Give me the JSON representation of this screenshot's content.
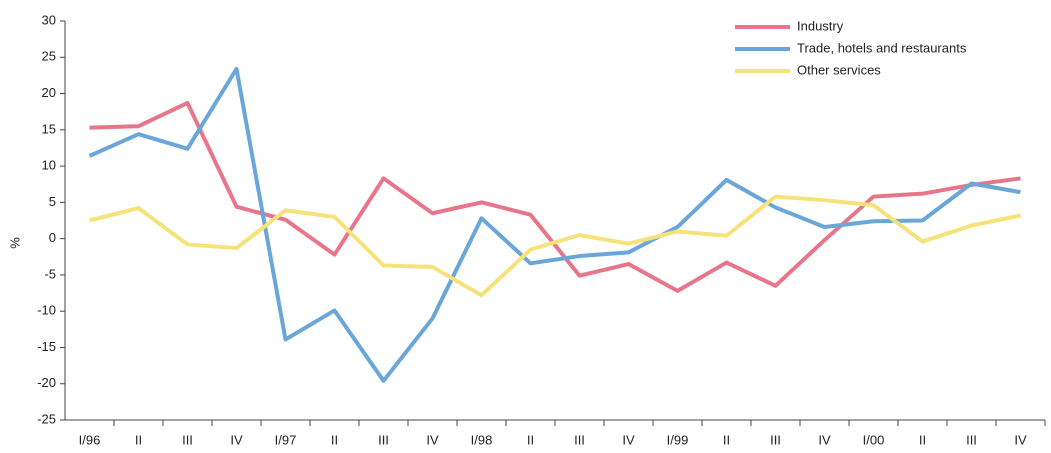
{
  "chart_data": {
    "type": "line",
    "y_label": "%",
    "categories": [
      "I/96",
      "II",
      "III",
      "IV",
      "I/97",
      "II",
      "III",
      "IV",
      "I/98",
      "II",
      "III",
      "IV",
      "I/99",
      "II",
      "III",
      "IV",
      "I/00",
      "II",
      "III",
      "IV"
    ],
    "series": [
      {
        "name": "Industry",
        "color": "#e8768a",
        "values": [
          15.3,
          15.5,
          18.7,
          4.4,
          2.6,
          -2.2,
          8.3,
          3.5,
          5.0,
          3.3,
          -5.1,
          -3.5,
          -7.2,
          -3.3,
          -6.5,
          -0.2,
          5.8,
          6.2,
          7.4,
          8.3
        ]
      },
      {
        "name": "Trade, hotels and restaurants",
        "color": "#6aa6d8",
        "values": [
          11.4,
          14.4,
          12.4,
          23.4,
          -13.9,
          -9.9,
          -19.6,
          -11.0,
          2.8,
          -3.4,
          -2.4,
          -1.9,
          1.6,
          8.1,
          4.3,
          1.6,
          2.4,
          2.5,
          7.6,
          6.4
        ]
      },
      {
        "name": "Other services",
        "color": "#f7e27a",
        "values": [
          2.5,
          4.2,
          -0.8,
          -1.3,
          3.9,
          3.0,
          -3.7,
          -3.9,
          -7.8,
          -1.5,
          0.5,
          -0.7,
          1.0,
          0.4,
          5.8,
          5.3,
          4.6,
          -0.4,
          1.8,
          3.2
        ]
      }
    ],
    "ylim": [
      -25,
      30
    ],
    "yticks": [
      -25,
      -20,
      -15,
      -10,
      -5,
      0,
      5,
      10,
      15,
      20,
      25,
      30
    ],
    "grid": false,
    "legend": "upper right"
  }
}
